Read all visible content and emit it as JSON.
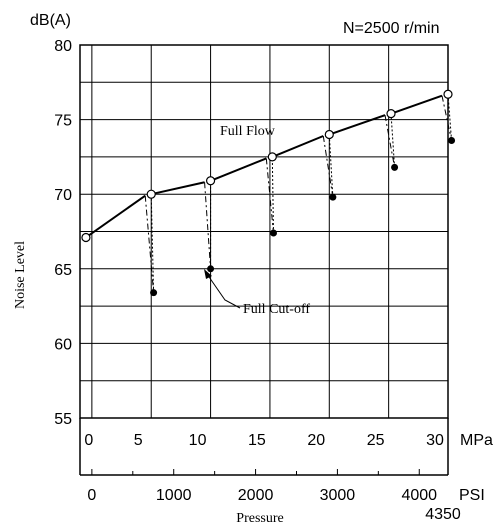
{
  "chart_data": {
    "type": "line",
    "title": "",
    "annotation_top": "N=2500 r/min",
    "ylabel": "Noise Level",
    "yunit": "dB(A)",
    "xlabel": "Pressure",
    "ylim": [
      55,
      80
    ],
    "y_ticks": [
      "55",
      "60",
      "65",
      "70",
      "75",
      "80"
    ],
    "xlim_mpa": [
      -1,
      30
    ],
    "x_ticks_mpa": [
      "0",
      "5",
      "10",
      "15",
      "20",
      "25",
      "30"
    ],
    "x_unit_mpa": "MPa",
    "x_ticks_psi": [
      "0",
      "1000",
      "2000",
      "3000",
      "4000"
    ],
    "x_unit_psi": "PSI",
    "x_psi_extra": "4350",
    "grid": true,
    "series": [
      {
        "name": "Full Flow",
        "x": [
          0,
          5,
          10,
          15,
          20,
          25,
          30
        ],
        "y": [
          67.1,
          70.0,
          70.9,
          72.5,
          74.0,
          75.4,
          76.7
        ]
      },
      {
        "name": "Full Cut-off",
        "x": [
          5,
          10,
          15,
          20,
          25,
          30
        ],
        "y": [
          63.4,
          65.0,
          67.4,
          69.8,
          71.8,
          73.6
        ]
      }
    ]
  }
}
